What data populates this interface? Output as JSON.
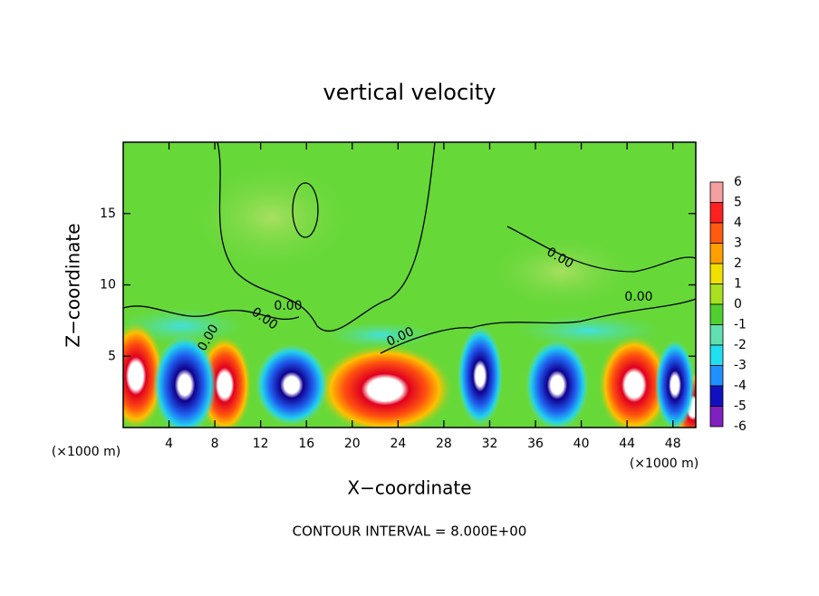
{
  "chart_data": {
    "type": "contour",
    "title": "vertical velocity",
    "x_label": "X−coordinate",
    "y_label": "Z−coordinate",
    "x_unit_labels": [
      "(×1000 m)",
      "(×1000 m)"
    ],
    "annotation": "CONTOUR INTERVAL = 8.000E+00",
    "contour_labels": [
      "0.00",
      "0.00",
      "0.00",
      "0.00",
      "0.00",
      "0.00"
    ],
    "xlim": [
      0,
      50
    ],
    "xticks": [
      4,
      8,
      12,
      16,
      20,
      24,
      28,
      32,
      36,
      40,
      44,
      48
    ],
    "ylim": [
      0,
      20
    ],
    "yticks": [
      5,
      10,
      15
    ],
    "colorbar": {
      "levels": [
        6,
        5,
        4,
        3,
        2,
        1,
        0,
        -1,
        -2,
        -3,
        -4,
        -5,
        -6
      ],
      "colors": [
        "#f4a0a0",
        "#ff2020",
        "#ff5a10",
        "#ffa000",
        "#f0e000",
        "#a8e020",
        "#50d030",
        "#60e0b0",
        "#20e0f0",
        "#2090ff",
        "#1010c0",
        "#8020c0"
      ]
    }
  }
}
